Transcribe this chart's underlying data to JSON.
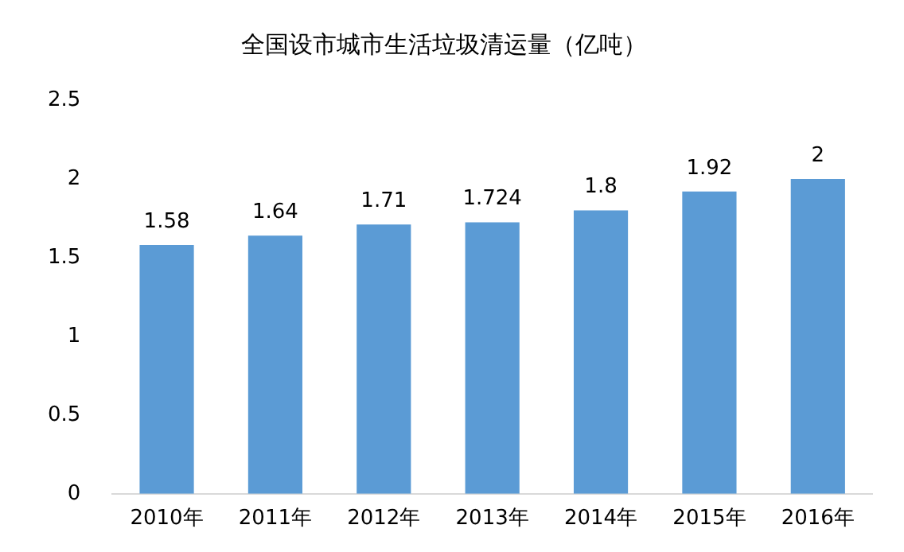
{
  "chart_data": {
    "type": "bar",
    "title": "全国设市城市生活垃圾清运量（亿吨）",
    "categories": [
      "2010年",
      "2011年",
      "2012年",
      "2013年",
      "2014年",
      "2015年",
      "2016年"
    ],
    "values": [
      1.58,
      1.64,
      1.71,
      1.724,
      1.8,
      1.92,
      2
    ],
    "color": "#5b9bd5",
    "ylim": [
      0,
      2.5
    ],
    "yticks": [
      0,
      0.5,
      1,
      1.5,
      2,
      2.5
    ],
    "grid": false,
    "data_labels": true
  }
}
